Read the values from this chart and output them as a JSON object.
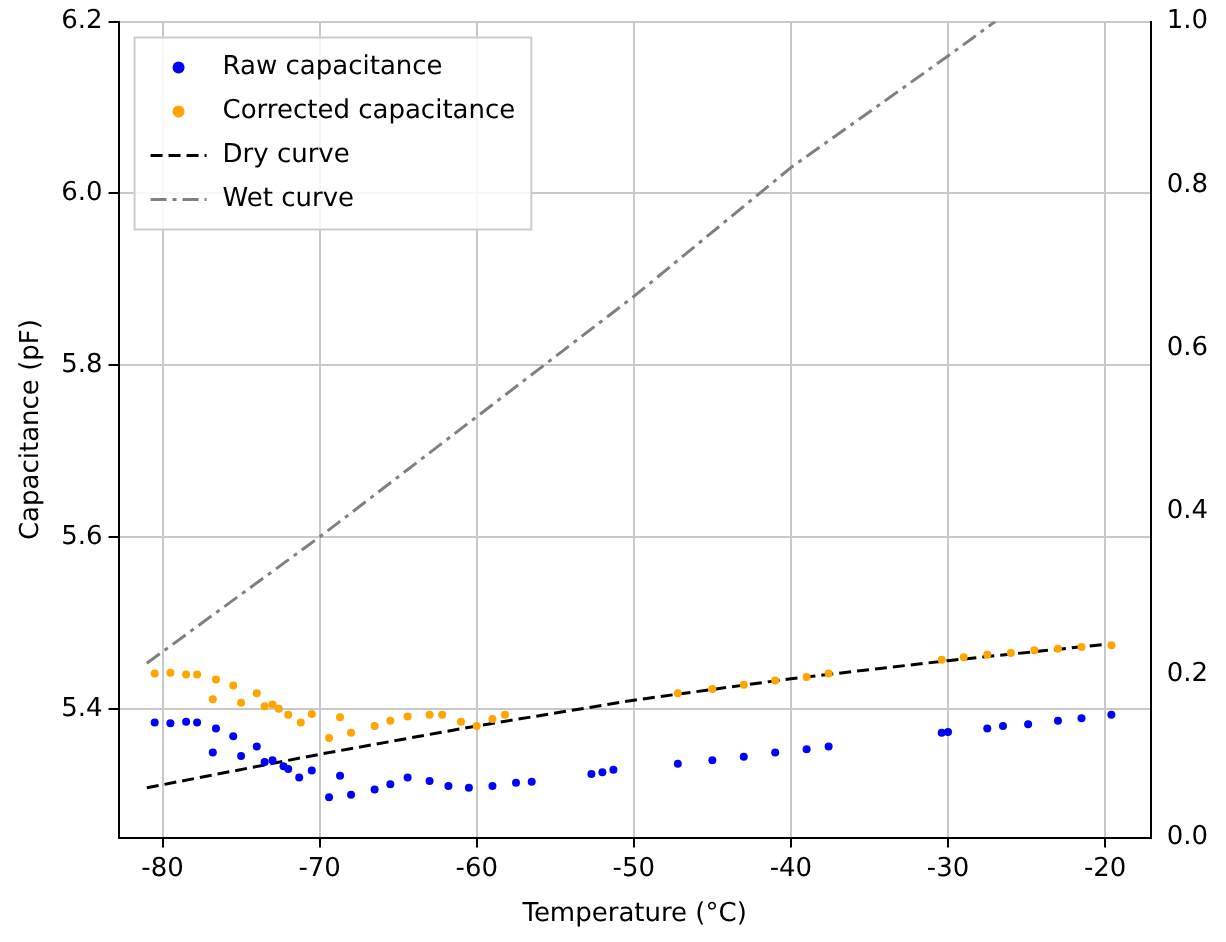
{
  "chart_data": {
    "type": "scatter",
    "xlabel": "Temperature (°C)",
    "ylabel": "Capacitance (pF)",
    "xlim": [
      -82.8,
      -17.1
    ],
    "xticks": [
      -80,
      -70,
      -60,
      -50,
      -40,
      -30,
      -20
    ],
    "ylim": [
      5.25,
      6.2
    ],
    "yticks": [
      5.4,
      5.6,
      5.8,
      {
        "value": 6.0,
        "label": "6.0"
      },
      6.2
    ],
    "y2lim": [
      0,
      1
    ],
    "y2ticks": [
      {
        "value": 0,
        "label": "0.0"
      },
      0.2,
      0.4,
      0.6,
      0.8,
      {
        "value": 1,
        "label": "1.0"
      }
    ],
    "grid": true,
    "legend": "top left",
    "series": [
      {
        "name": "Raw capacitance",
        "marker": "circle",
        "color": "#0000ff",
        "x": [
          -80.5,
          -79.5,
          -78.5,
          -77.8,
          -76.6,
          -75.5,
          -74,
          -73,
          -72,
          -71.3,
          -76.8,
          -75,
          -73.5,
          -72.3,
          -70.5,
          -68.7,
          -69.4,
          -68,
          -66.5,
          -65.5,
          -64.4,
          -63,
          -61.8,
          -60.5,
          -59,
          -57.5,
          -56.5,
          -52.7,
          -52,
          -51.3,
          -47.2,
          -45,
          -43,
          -41,
          -39,
          -37.6,
          -30.4,
          -30,
          -27.5,
          -26.5,
          -24.9,
          -23,
          -21.5,
          -19.6
        ],
        "values": [
          5.384,
          5.383,
          5.385,
          5.384,
          5.377,
          5.368,
          5.356,
          5.34,
          5.33,
          5.32,
          5.349,
          5.345,
          5.338,
          5.333,
          5.328,
          5.322,
          5.297,
          5.3,
          5.306,
          5.312,
          5.32,
          5.316,
          5.31,
          5.308,
          5.31,
          5.314,
          5.315,
          5.324,
          5.326,
          5.329,
          5.336,
          5.34,
          5.344,
          5.349,
          5.353,
          5.356,
          5.372,
          5.373,
          5.377,
          5.38,
          5.382,
          5.386,
          5.389,
          5.393
        ]
      },
      {
        "name": "Corrected capacitance",
        "marker": "circle",
        "color": "#ffa500",
        "x": [
          -80.5,
          -79.5,
          -78.5,
          -77.8,
          -76.6,
          -75.5,
          -74,
          -73,
          -72,
          -71.2,
          -76.8,
          -75,
          -73.5,
          -72.6,
          -70.5,
          -68.7,
          -69.4,
          -68,
          -66.5,
          -65.5,
          -64.4,
          -63,
          -62.2,
          -61,
          -60,
          -59,
          -58.2,
          -47.2,
          -45,
          -43,
          -41,
          -39,
          -37.6,
          -30.4,
          -29,
          -27.5,
          -26,
          -24.5,
          -23,
          -21.5,
          -19.6
        ],
        "values": [
          5.441,
          5.442,
          5.44,
          5.44,
          5.434,
          5.427,
          5.418,
          5.405,
          5.393,
          5.384,
          5.411,
          5.407,
          5.403,
          5.4,
          5.394,
          5.39,
          5.366,
          5.372,
          5.38,
          5.386,
          5.391,
          5.393,
          5.393,
          5.385,
          5.38,
          5.388,
          5.393,
          5.418,
          5.423,
          5.428,
          5.433,
          5.437,
          5.441,
          5.457,
          5.46,
          5.463,
          5.465,
          5.468,
          5.47,
          5.472,
          5.474
        ]
      },
      {
        "name": "Dry curve",
        "type": "line",
        "line_style": "dashed",
        "marker": "none",
        "color": "#000000",
        "x": [
          -81,
          -70,
          -60,
          -50,
          -40,
          -30,
          -20
        ],
        "values": [
          5.308,
          5.347,
          5.38,
          5.41,
          5.435,
          5.456,
          5.475
        ]
      },
      {
        "name": "Wet curve",
        "type": "line",
        "line_style": "dashdot",
        "marker": "none",
        "color": "#808080",
        "x": [
          -81,
          -70,
          -60,
          -50,
          -40,
          -30,
          -27
        ],
        "values": [
          5.453,
          5.6,
          5.74,
          5.88,
          6.03,
          6.16,
          6.2
        ]
      }
    ]
  }
}
